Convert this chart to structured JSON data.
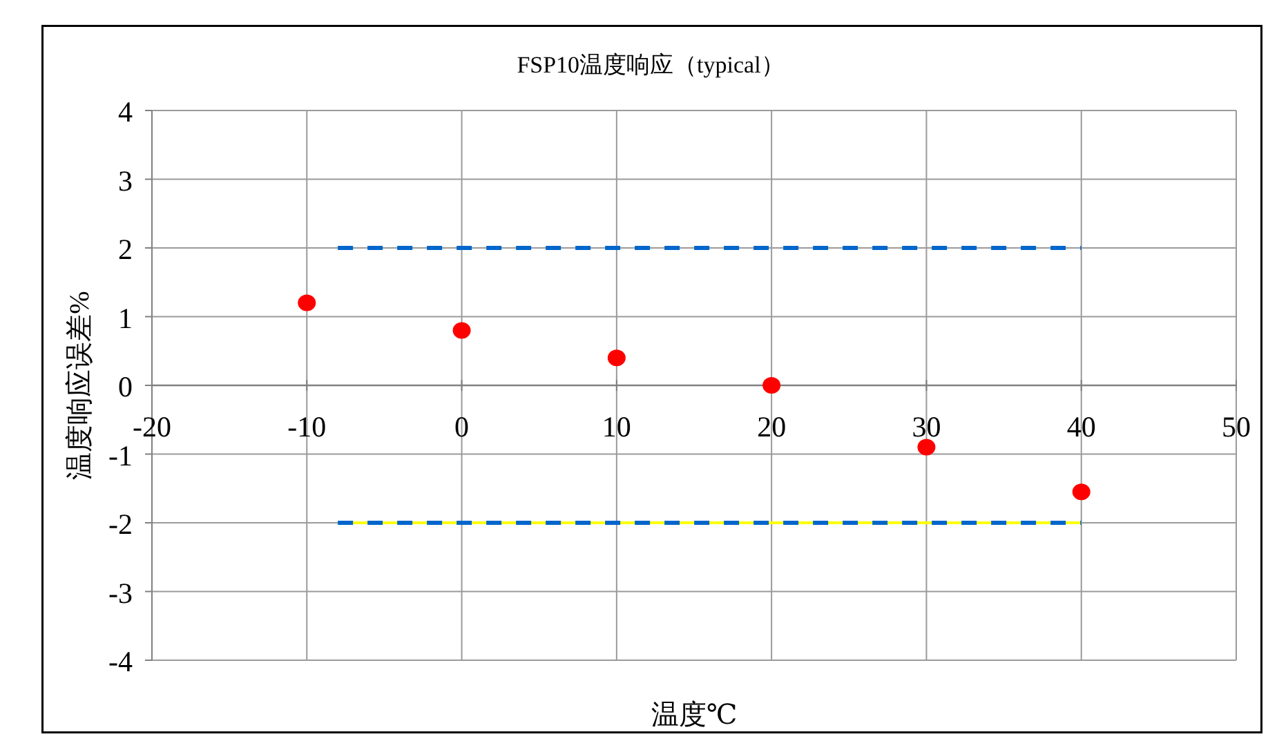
{
  "chart_data": {
    "type": "scatter",
    "title": "FSP10温度响应（typical）",
    "xlabel": "温度℃",
    "ylabel": "温度响应误差%",
    "xlim": [
      -20,
      50
    ],
    "ylim": [
      -4,
      4
    ],
    "xticks": [
      -20,
      -10,
      0,
      10,
      20,
      30,
      40,
      50
    ],
    "yticks": [
      -4,
      -3,
      -2,
      -1,
      0,
      1,
      2,
      3,
      4
    ],
    "grid": true,
    "series": [
      {
        "color": "#ff0000",
        "marker": "circle",
        "x": [
          -10,
          0,
          10,
          20,
          30,
          40
        ],
        "values": [
          1.2,
          0.8,
          0.4,
          0,
          -0.9,
          -1.55
        ]
      },
      {
        "type": "line",
        "color": "#ffff00",
        "line_style": "solid",
        "marker": "none",
        "x": [
          -8,
          40
        ],
        "values": [
          -2,
          -2
        ]
      },
      {
        "type": "line",
        "color": "#0066cc",
        "line_style": "dashed",
        "marker": "none",
        "x": [
          -8,
          40
        ],
        "values": [
          2,
          2
        ]
      },
      {
        "type": "line",
        "color": "#0066cc",
        "line_style": "dashed",
        "marker": "none",
        "x": [
          -8,
          40
        ],
        "values": [
          -2,
          -2
        ]
      }
    ]
  }
}
